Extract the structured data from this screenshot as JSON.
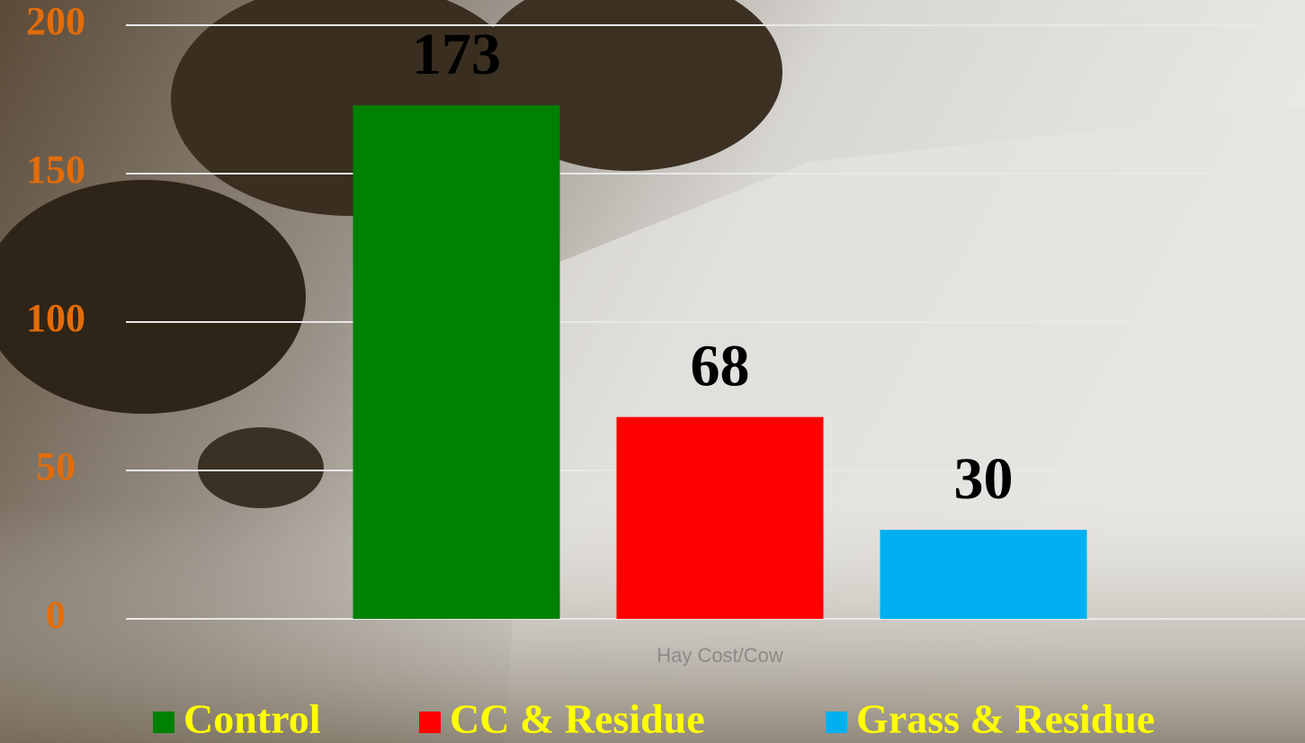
{
  "chart_data": {
    "type": "bar",
    "categories": [
      "Hay Cost/Cow"
    ],
    "series": [
      {
        "name": "Control",
        "color": "#008000",
        "values": [
          173
        ]
      },
      {
        "name": "CC & Residue",
        "color": "#ff0000",
        "values": [
          68
        ]
      },
      {
        "name": "Grass & Residue",
        "color": "#00b0f0",
        "values": [
          30
        ]
      }
    ],
    "ylim": [
      0,
      200
    ],
    "yticks": [
      0,
      50,
      100,
      150,
      200
    ],
    "grid": true,
    "legend": "bottom"
  }
}
